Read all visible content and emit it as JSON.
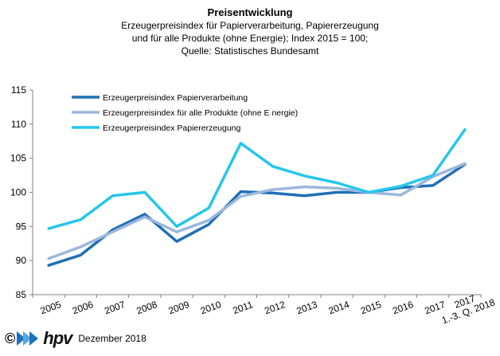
{
  "title": "Preisentwicklung",
  "subtitle_lines": [
    "Erzeugerpreisindex  für Papierverarbeitung,  Papiererzeugung",
    "und für alle Produkte (ohne Energie); Index 2015 = 100;",
    "Quelle:  Statistisches Bundesamt"
  ],
  "footer": {
    "copyright": "©",
    "logo_text": "hpv",
    "date": "Dezember 2018"
  },
  "chart_data": {
    "type": "line",
    "categories": [
      "2005",
      "2006",
      "2007",
      "2008",
      "2009",
      "2010",
      "2011",
      "2012",
      "2013",
      "2014",
      "2015",
      "2016",
      "2017",
      "1.-3. Q. 2018"
    ],
    "category_labels": [
      [
        "2005"
      ],
      [
        "2006"
      ],
      [
        "2007"
      ],
      [
        "2008"
      ],
      [
        "2009"
      ],
      [
        "2010"
      ],
      [
        "2011"
      ],
      [
        "2012"
      ],
      [
        "2013"
      ],
      [
        "2014"
      ],
      [
        "2015"
      ],
      [
        "2016"
      ],
      [
        "2017"
      ],
      [
        "2017",
        "1.-3. Q. 2018"
      ]
    ],
    "ylim": [
      85,
      115
    ],
    "yticks": [
      85,
      90,
      95,
      100,
      105,
      110,
      115
    ],
    "grid": false,
    "legend_position": "top-left",
    "series": [
      {
        "name": "Erzeugerpreisindex Papierverarbeitung",
        "color": "#1f6fb5",
        "values": [
          89.3,
          90.8,
          94.5,
          96.8,
          92.8,
          95.3,
          100.1,
          99.9,
          99.5,
          100.0,
          100.0,
          100.7,
          101.0,
          104.1
        ]
      },
      {
        "name": "Erzeugerpreisindex für alle Produkte (ohne E nergie)",
        "color": "#9bb7dc",
        "values": [
          90.3,
          92.0,
          94.2,
          96.4,
          94.2,
          95.9,
          99.4,
          100.4,
          100.8,
          100.6,
          100.0,
          99.6,
          102.3,
          104.2
        ]
      },
      {
        "name": "Erzeugerpreisindex Papiererzeugung",
        "color": "#26c6ec",
        "values": [
          94.7,
          96.0,
          99.5,
          100.0,
          95.0,
          97.7,
          107.2,
          103.8,
          102.4,
          101.4,
          100.0,
          100.9,
          102.5,
          109.2
        ]
      }
    ]
  }
}
